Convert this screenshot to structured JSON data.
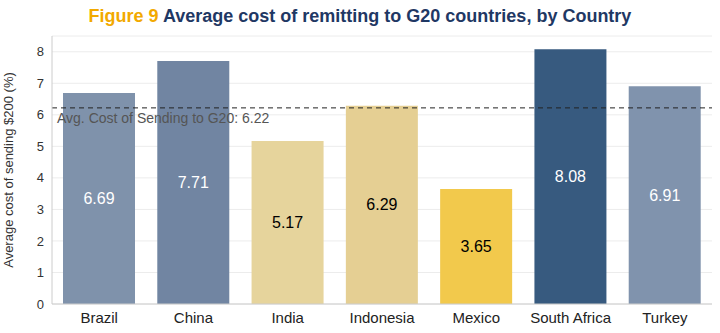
{
  "chart_data": {
    "type": "bar",
    "title": "Figure 9 Average cost of remitting to G20 countries, by Country",
    "ylabel": "Average cost of sending $200 (%)",
    "categories": [
      "Brazil",
      "China",
      "India",
      "Indonesia",
      "Mexico",
      "South Africa",
      "Turkey"
    ],
    "values": [
      6.69,
      7.71,
      5.17,
      6.29,
      3.65,
      8.08,
      6.91
    ],
    "colors": [
      "#7f92ab",
      "#7185a2",
      "#e6d49c",
      "#e5cf93",
      "#f2c94c",
      "#375a7f",
      "#8093ad"
    ],
    "ylim": [
      0,
      8.5
    ],
    "yticks": [
      0,
      1,
      2,
      3,
      4,
      5,
      6,
      7,
      8
    ],
    "grid": true,
    "data_labels": true,
    "annotations": [
      {
        "text": "Avg. Cost of Sending to G20: 6.22",
        "value": 6.22
      }
    ]
  }
}
